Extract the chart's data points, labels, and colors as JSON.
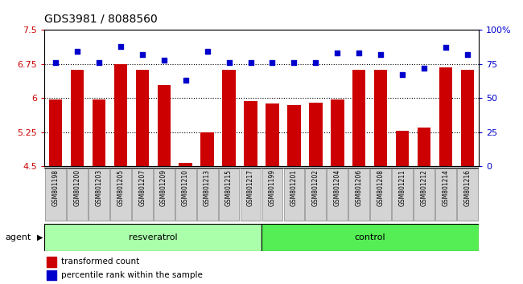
{
  "title": "GDS3981 / 8088560",
  "samples": [
    "GSM801198",
    "GSM801200",
    "GSM801203",
    "GSM801205",
    "GSM801207",
    "GSM801209",
    "GSM801210",
    "GSM801213",
    "GSM801215",
    "GSM801217",
    "GSM801199",
    "GSM801201",
    "GSM801202",
    "GSM801204",
    "GSM801206",
    "GSM801208",
    "GSM801211",
    "GSM801212",
    "GSM801214",
    "GSM801216"
  ],
  "transformed_count": [
    5.97,
    6.62,
    5.97,
    6.75,
    6.62,
    6.28,
    4.57,
    5.25,
    6.62,
    5.93,
    5.87,
    5.85,
    5.9,
    5.97,
    6.62,
    6.62,
    5.28,
    5.35,
    6.68,
    6.62
  ],
  "percentile_rank": [
    76,
    84,
    76,
    88,
    82,
    78,
    63,
    84,
    76,
    76,
    76,
    76,
    76,
    83,
    83,
    82,
    67,
    72,
    87,
    82
  ],
  "resveratrol_count": 10,
  "control_count": 10,
  "ylim_left": [
    4.5,
    7.5
  ],
  "ylim_right": [
    0,
    100
  ],
  "yticks_left": [
    4.5,
    5.25,
    6.0,
    6.75,
    7.5
  ],
  "yticks_right": [
    0,
    25,
    50,
    75,
    100
  ],
  "ytick_labels_left": [
    "4.5",
    "5.25",
    "6",
    "6.75",
    "7.5"
  ],
  "ytick_labels_right": [
    "0",
    "25",
    "50",
    "75",
    "100%"
  ],
  "hlines": [
    5.25,
    6.0,
    6.75
  ],
  "bar_color": "#cc0000",
  "dot_color": "#0000cc",
  "bar_width": 0.6,
  "resveratrol_color": "#aaffaa",
  "control_color": "#55ee55",
  "agent_label": "agent",
  "resveratrol_label": "resveratrol",
  "control_label": "control",
  "legend_bar_label": "transformed count",
  "legend_dot_label": "percentile rank within the sample",
  "left_tick_color": "#cc0000",
  "right_tick_color": "#0000cc",
  "title_fontsize": 10,
  "tick_fontsize": 8,
  "sample_label_fontsize": 5.5,
  "xlabel_gray": "#c8c8c8",
  "fig_bg": "#ffffff"
}
